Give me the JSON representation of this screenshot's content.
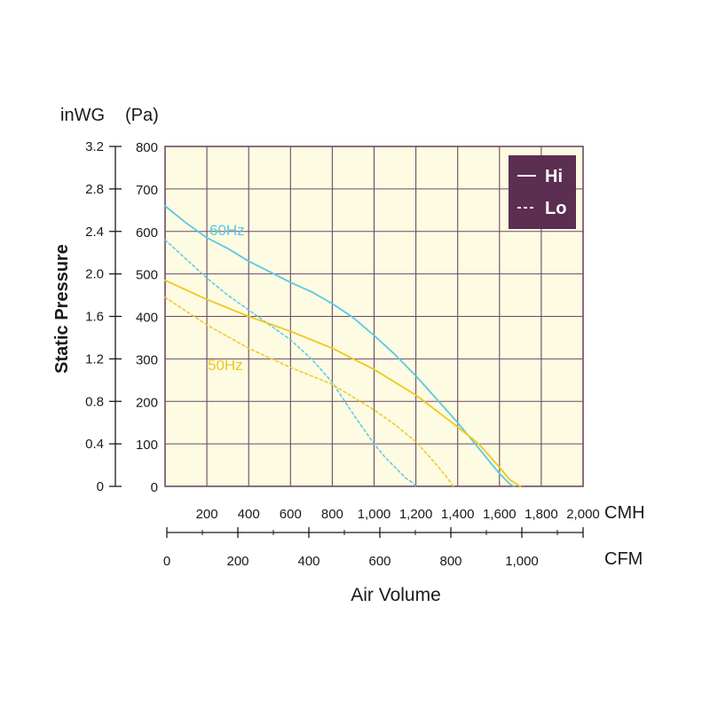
{
  "chart_data": {
    "type": "line",
    "ylabel": "Static Pressure",
    "xlabel": "Air Volume",
    "y_units": {
      "left": "inWG",
      "right": "(Pa)"
    },
    "x_units": {
      "top": "CMH",
      "bottom": "CFM"
    },
    "ylim_pa": [
      0,
      800
    ],
    "xlim_cmh": [
      0,
      2000
    ],
    "y_ticks_pa": [
      "0",
      "100",
      "200",
      "300",
      "400",
      "500",
      "600",
      "700",
      "800"
    ],
    "y_ticks_inwg": [
      "0",
      "0.4",
      "0.8",
      "1.2",
      "1.6",
      "2.0",
      "2.4",
      "2.8",
      "3.2"
    ],
    "x_ticks_cmh": [
      "200",
      "400",
      "600",
      "800",
      "1,000",
      "1,200",
      "1,400",
      "1,600",
      "1,800",
      "2,000"
    ],
    "x_ticks_cfm": [
      "0",
      "200",
      "400",
      "600",
      "800",
      "1,000"
    ],
    "x_ticks_cfm_values": [
      0,
      200,
      400,
      600,
      800,
      1000
    ],
    "grid": true,
    "legend": {
      "position": "top-right",
      "entries": [
        {
          "label": "Hi",
          "style": "solid"
        },
        {
          "label": "Lo",
          "style": "dashed"
        }
      ]
    },
    "series": [
      {
        "name": "60Hz",
        "speed": "Hi",
        "color": "#5bc8e8",
        "dash": false,
        "label_shown": true,
        "x": [
          0,
          100,
          200,
          300,
          400,
          500,
          600,
          700,
          800,
          900,
          1000,
          1100,
          1200,
          1300,
          1400,
          1500,
          1550,
          1600,
          1650,
          1670
        ],
        "y": [
          660,
          620,
          585,
          560,
          530,
          505,
          480,
          458,
          430,
          397,
          355,
          310,
          260,
          205,
          150,
          90,
          60,
          30,
          5,
          0
        ]
      },
      {
        "name": "60Hz",
        "speed": "Lo",
        "color": "#5bc8e8",
        "dash": true,
        "label_shown": false,
        "x": [
          0,
          100,
          200,
          300,
          400,
          500,
          600,
          700,
          800,
          900,
          1000,
          1050,
          1100,
          1150,
          1180,
          1200
        ],
        "y": [
          580,
          535,
          490,
          450,
          415,
          380,
          345,
          300,
          245,
          170,
          100,
          70,
          45,
          20,
          10,
          0
        ]
      },
      {
        "name": "50Hz",
        "speed": "Hi",
        "color": "#f0c81e",
        "dash": false,
        "label_shown": true,
        "x": [
          0,
          200,
          400,
          600,
          800,
          1000,
          1200,
          1400,
          1500,
          1600,
          1650,
          1700
        ],
        "y": [
          485,
          440,
          400,
          365,
          325,
          275,
          215,
          140,
          100,
          45,
          15,
          0
        ]
      },
      {
        "name": "50Hz",
        "speed": "Lo",
        "color": "#f0c81e",
        "dash": true,
        "label_shown": false,
        "x": [
          0,
          200,
          400,
          600,
          800,
          900,
          1000,
          1100,
          1200,
          1300,
          1350,
          1380
        ],
        "y": [
          445,
          380,
          325,
          280,
          240,
          210,
          180,
          145,
          105,
          50,
          20,
          0
        ]
      }
    ]
  }
}
